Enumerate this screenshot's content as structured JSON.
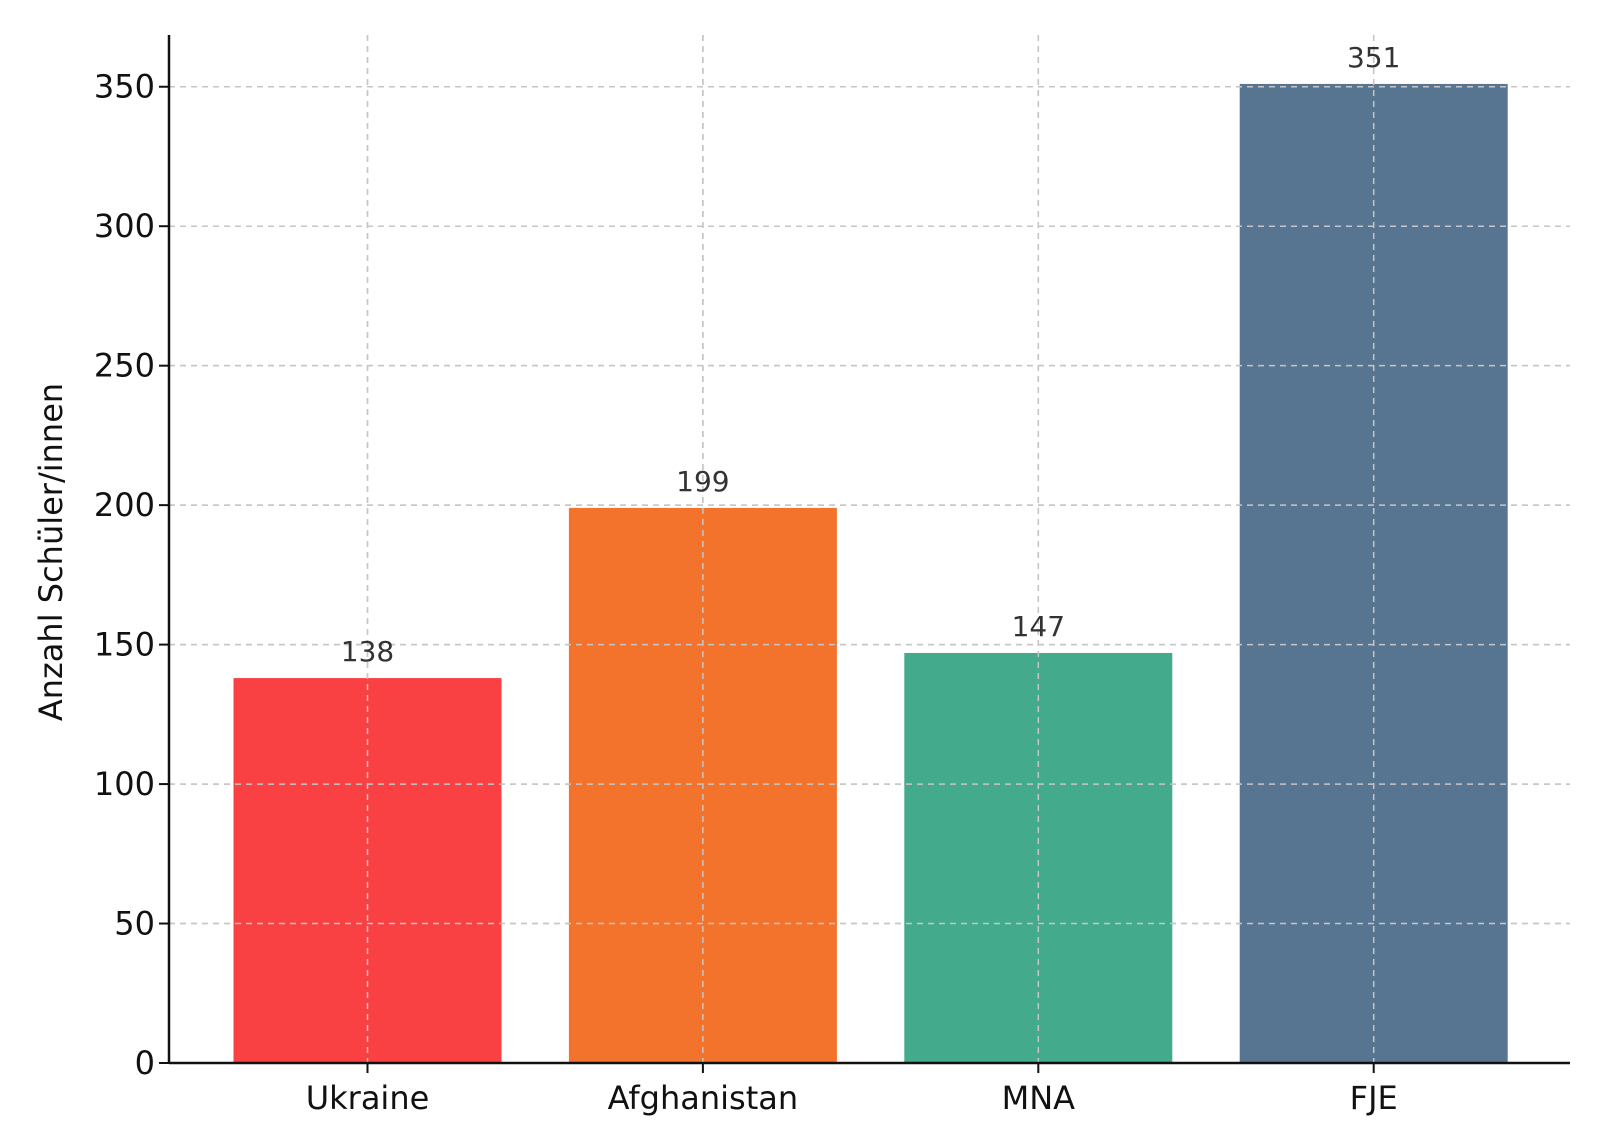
{
  "chart_data": {
    "type": "bar",
    "categories": [
      "Ukraine",
      "Afghanistan",
      "MNA",
      "FJE"
    ],
    "values": [
      138,
      199,
      147,
      351
    ],
    "data_labels": [
      "138",
      "199",
      "147",
      "351"
    ],
    "colors": [
      "#f94144",
      "#f3722c",
      "#43aa8b",
      "#577590"
    ],
    "title": "",
    "xlabel": "",
    "ylabel": "Anzahl Schüler/innen",
    "ylim": [
      0,
      368.55
    ],
    "yticks": [
      0,
      50,
      100,
      150,
      200,
      250,
      300,
      350
    ],
    "ytick_labels": [
      "0",
      "50",
      "100",
      "150",
      "200",
      "250",
      "300",
      "350"
    ],
    "grid": true,
    "legend": "none"
  }
}
